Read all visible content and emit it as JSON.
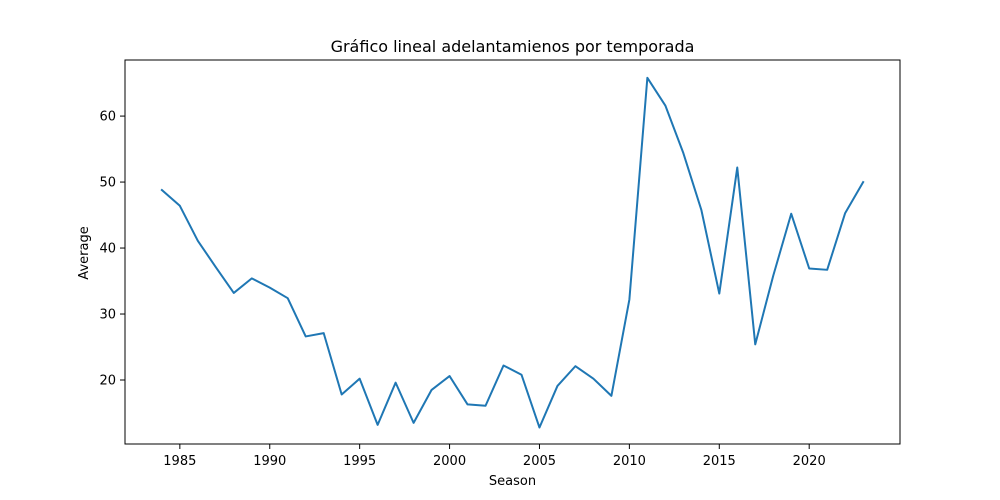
{
  "chart_data": {
    "type": "line",
    "title": "Gráfico lineal adelantamienos por temporada",
    "xlabel": "Season",
    "ylabel": "Average",
    "xlim": [
      1981.95,
      2025.05
    ],
    "ylim": [
      10.3,
      68.5
    ],
    "xticks": [
      1985,
      1990,
      1995,
      2000,
      2005,
      2010,
      2015,
      2020
    ],
    "yticks": [
      20,
      30,
      40,
      50,
      60
    ],
    "grid": false,
    "legend": false,
    "color": "#1f77b4",
    "series": [
      {
        "x": [
          1984,
          1985,
          1986,
          1987,
          1988,
          1989,
          1990,
          1991,
          1992,
          1993,
          1994,
          1995,
          1996,
          1997,
          1998,
          1999,
          2000,
          2001,
          2002,
          2003,
          2004,
          2005,
          2006,
          2007,
          2008,
          2009,
          2010,
          2011,
          2012,
          2013,
          2014,
          2015,
          2016,
          2017,
          2018,
          2019,
          2020,
          2021,
          2022,
          2023
        ],
        "values": [
          48.8,
          46.4,
          41.1,
          37.1,
          33.2,
          35.4,
          34.0,
          32.4,
          26.6,
          27.1,
          17.8,
          20.2,
          13.2,
          19.6,
          13.5,
          18.5,
          20.6,
          16.3,
          16.1,
          22.2,
          20.8,
          12.8,
          19.1,
          22.1,
          20.2,
          17.6,
          32.2,
          65.8,
          61.6,
          54.4,
          45.8,
          33.1,
          52.2,
          25.4,
          35.8,
          45.2,
          36.9,
          36.7,
          45.3,
          50.0
        ]
      }
    ]
  }
}
